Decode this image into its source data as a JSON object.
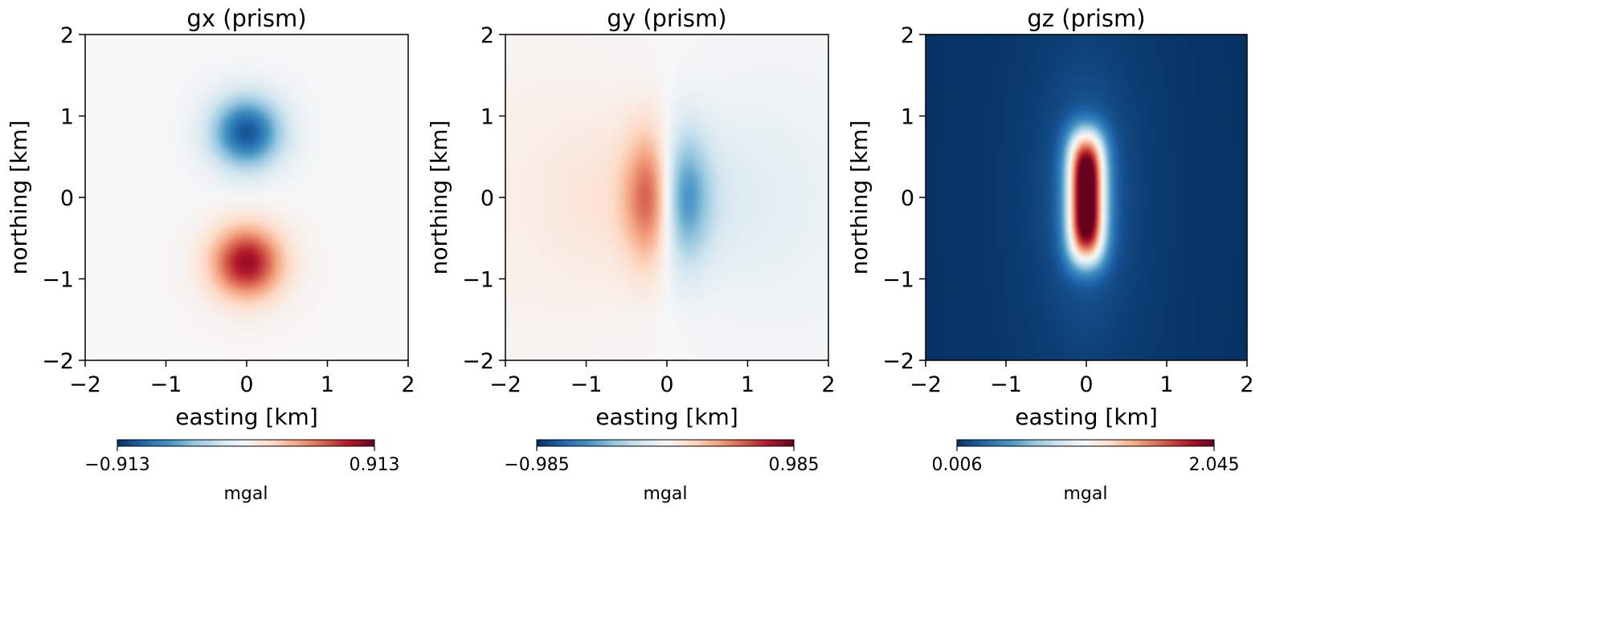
{
  "chart_data": [
    {
      "type": "heatmap",
      "title": "gx (prism)",
      "xlabel": "easting [km]",
      "ylabel": "northing [km]",
      "xlim": [
        -2,
        2
      ],
      "ylim": [
        -2,
        2
      ],
      "xticks": [
        -2,
        -1,
        0,
        1,
        2
      ],
      "yticks": [
        -2,
        -1,
        0,
        1,
        2
      ],
      "xtick_labels": [
        "−2",
        "−1",
        "0",
        "1",
        "2"
      ],
      "ytick_labels": [
        "−2",
        "−1",
        "0",
        "1",
        "2"
      ],
      "colormap": "RdBu_r",
      "field": "gx",
      "colorbar": {
        "min": -0.913,
        "max": 0.913,
        "min_label": "−0.913",
        "max_label": "0.913",
        "label": "mgal",
        "orientation": "horizontal",
        "placement": "below"
      }
    },
    {
      "type": "heatmap",
      "title": "gy (prism)",
      "xlabel": "easting [km]",
      "ylabel": "northing [km]",
      "xlim": [
        -2,
        2
      ],
      "ylim": [
        -2,
        2
      ],
      "xticks": [
        -2,
        -1,
        0,
        1,
        2
      ],
      "yticks": [
        -2,
        -1,
        0,
        1,
        2
      ],
      "xtick_labels": [
        "−2",
        "−1",
        "0",
        "1",
        "2"
      ],
      "ytick_labels": [
        "−2",
        "−1",
        "0",
        "1",
        "2"
      ],
      "colormap": "RdBu_r",
      "field": "gy",
      "colorbar": {
        "min": -0.985,
        "max": 0.985,
        "min_label": "−0.985",
        "max_label": "0.985",
        "label": "mgal",
        "orientation": "horizontal",
        "placement": "below"
      }
    },
    {
      "type": "heatmap",
      "title": "gz (prism)",
      "xlabel": "easting [km]",
      "ylabel": "northing [km]",
      "xlim": [
        -2,
        2
      ],
      "ylim": [
        -2,
        2
      ],
      "xticks": [
        -2,
        -1,
        0,
        1,
        2
      ],
      "yticks": [
        -2,
        -1,
        0,
        1,
        2
      ],
      "xtick_labels": [
        "−2",
        "−1",
        "0",
        "1",
        "2"
      ],
      "ytick_labels": [
        "−2",
        "−1",
        "0",
        "1",
        "2"
      ],
      "colormap": "RdBu_r",
      "field": "gz",
      "colorbar": {
        "min": 0.006,
        "max": 2.045,
        "min_label": "0.006",
        "max_label": "2.045",
        "label": "mgal",
        "orientation": "horizontal",
        "placement": "below"
      }
    }
  ],
  "colors": {
    "colormap_RdBu_r": [
      "#053061",
      "#2166ac",
      "#4393c3",
      "#92c5de",
      "#d1e5f0",
      "#f7f7f7",
      "#fddbc7",
      "#f4a582",
      "#d6604d",
      "#b2182b",
      "#67001f"
    ]
  }
}
